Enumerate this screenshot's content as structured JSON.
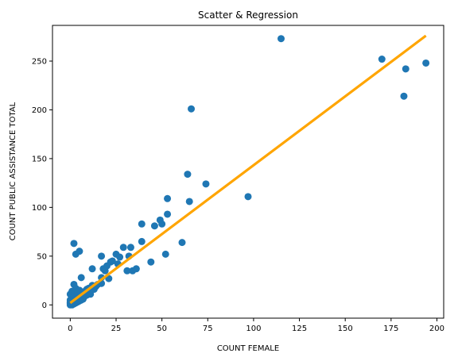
{
  "chart_data": {
    "type": "scatter",
    "title": "Scatter & Regression",
    "xlabel": "COUNT FEMALE",
    "ylabel": "COUNT PUBLIC ASSISTANCE TOTAL",
    "xlim": [
      -9.7,
      203.7
    ],
    "ylim": [
      -13.6,
      286.6
    ],
    "xticks": [
      0,
      25,
      50,
      75,
      100,
      125,
      150,
      175,
      200
    ],
    "yticks": [
      0,
      50,
      100,
      150,
      200,
      250
    ],
    "grid": false,
    "legend": "none",
    "colors": {
      "points": "#1f77b4",
      "line": "#ffa500"
    },
    "regression": {
      "x": [
        0,
        194
      ],
      "y": [
        2,
        276
      ]
    },
    "points": [
      [
        0,
        0
      ],
      [
        0,
        1
      ],
      [
        0,
        2
      ],
      [
        0,
        3
      ],
      [
        0,
        5
      ],
      [
        0,
        11
      ],
      [
        1,
        0
      ],
      [
        1,
        2
      ],
      [
        1,
        4
      ],
      [
        1,
        6
      ],
      [
        1,
        14
      ],
      [
        2,
        1
      ],
      [
        2,
        3
      ],
      [
        2,
        5
      ],
      [
        2,
        8
      ],
      [
        2,
        21
      ],
      [
        2,
        63
      ],
      [
        3,
        2
      ],
      [
        3,
        4
      ],
      [
        3,
        9
      ],
      [
        3,
        17
      ],
      [
        3,
        52
      ],
      [
        4,
        3
      ],
      [
        4,
        6
      ],
      [
        4,
        12
      ],
      [
        5,
        4
      ],
      [
        5,
        8
      ],
      [
        5,
        15
      ],
      [
        5,
        55
      ],
      [
        6,
        5
      ],
      [
        6,
        10
      ],
      [
        6,
        28
      ],
      [
        7,
        6
      ],
      [
        7,
        11
      ],
      [
        8,
        9
      ],
      [
        8,
        14
      ],
      [
        9,
        10
      ],
      [
        9,
        16
      ],
      [
        10,
        12
      ],
      [
        10,
        17
      ],
      [
        11,
        11
      ],
      [
        11,
        14
      ],
      [
        12,
        20
      ],
      [
        12,
        37
      ],
      [
        13,
        16
      ],
      [
        14,
        19
      ],
      [
        15,
        21
      ],
      [
        17,
        28
      ],
      [
        17,
        50
      ],
      [
        17,
        22
      ],
      [
        18,
        37
      ],
      [
        19,
        35
      ],
      [
        20,
        40
      ],
      [
        21,
        27
      ],
      [
        22,
        44
      ],
      [
        23,
        45
      ],
      [
        25,
        52
      ],
      [
        26,
        42
      ],
      [
        27,
        49
      ],
      [
        29,
        59
      ],
      [
        31,
        35
      ],
      [
        32,
        50
      ],
      [
        33,
        59
      ],
      [
        34,
        35
      ],
      [
        36,
        37
      ],
      [
        39,
        83
      ],
      [
        39,
        65
      ],
      [
        44,
        44
      ],
      [
        46,
        81
      ],
      [
        49,
        87
      ],
      [
        50,
        83
      ],
      [
        52,
        52
      ],
      [
        53,
        109
      ],
      [
        53,
        93
      ],
      [
        61,
        64
      ],
      [
        64,
        134
      ],
      [
        65,
        106
      ],
      [
        66,
        201
      ],
      [
        74,
        124
      ],
      [
        97,
        111
      ],
      [
        115,
        273
      ],
      [
        170,
        252
      ],
      [
        182,
        214
      ],
      [
        183,
        242
      ],
      [
        194,
        248
      ]
    ]
  }
}
